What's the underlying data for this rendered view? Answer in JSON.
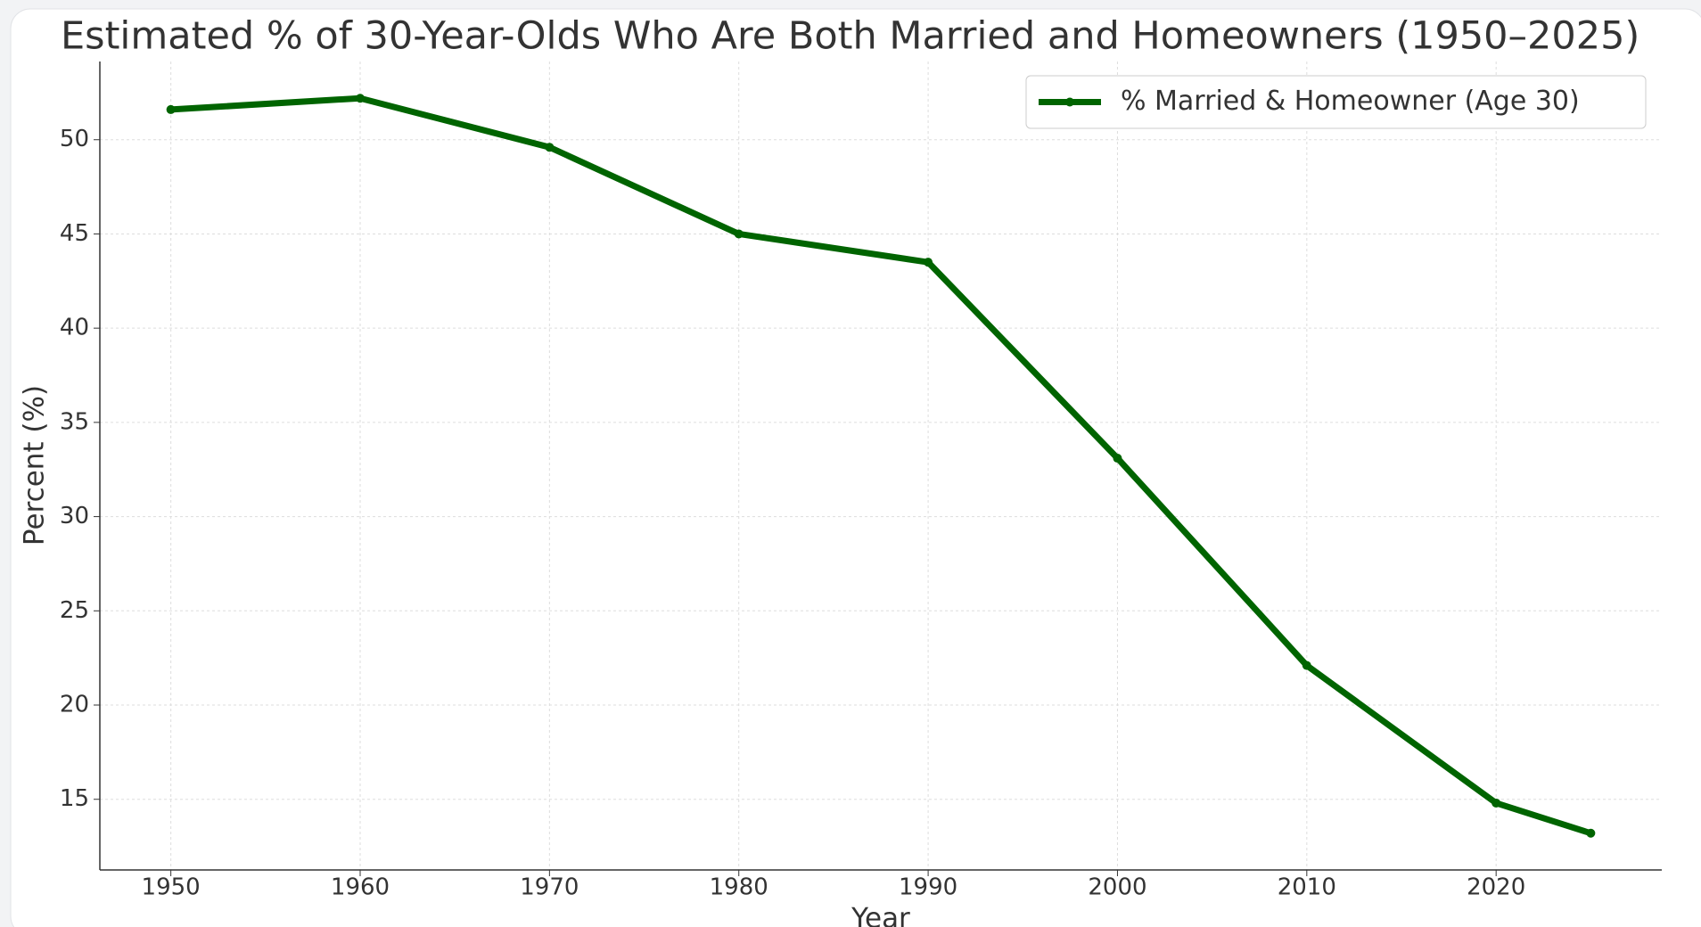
{
  "chart_data": {
    "type": "line",
    "title": "Estimated % of 30-Year-Olds Who Are Both Married and Homeowners (1950–2025)",
    "x_label": "Year",
    "y_label": "Percent (%)",
    "x": [
      1950,
      1960,
      1970,
      1980,
      1990,
      2000,
      2010,
      2020,
      2025
    ],
    "series": [
      {
        "name": "% Married & Homeowner (Age 30)",
        "color": "#006400",
        "values": [
          51.6,
          52.2,
          49.6,
          45.0,
          43.5,
          33.1,
          22.1,
          14.8,
          13.2
        ]
      }
    ],
    "xlim": [
      1946.25,
      2028.75
    ],
    "xticks": [
      1950,
      1960,
      1970,
      1980,
      1990,
      2000,
      2010,
      2020
    ],
    "ylim": [
      11.25,
      54.15
    ],
    "yticks": [
      15,
      20,
      25,
      30,
      35,
      40,
      45,
      50
    ],
    "grid": true,
    "legend": "upper right"
  }
}
